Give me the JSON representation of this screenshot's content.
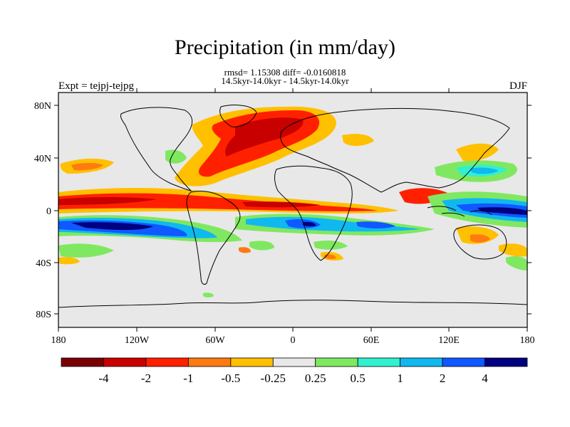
{
  "title": "Precipitation (in mm/day)",
  "stats_line1": "rmsd= 1.15308 diff= -0.0160818",
  "stats_line2": "14.5kyr-14.0kyr - 14.5kyr-14.0kyr",
  "experiment": "Expt = tejpj-tejpg",
  "season": "DJF",
  "lat_labels": [
    "80N",
    "40N",
    "0",
    "40S",
    "80S"
  ],
  "lon_labels": [
    "180",
    "120W",
    "60W",
    "0",
    "60E",
    "120E",
    "180"
  ],
  "colorbar": {
    "colors": [
      "#7a0000",
      "#c80000",
      "#ff2000",
      "#ff7a10",
      "#ffc000",
      "#e8e8e8",
      "#80e860",
      "#30f0d0",
      "#10b8f0",
      "#1058ff",
      "#000080"
    ],
    "labels": [
      "-4",
      "-2",
      "-1",
      "-0.5",
      "-0.25",
      "0.25",
      "0.5",
      "1",
      "2",
      "4"
    ]
  },
  "colors": {
    "ocean_bg": "#e8e8e8",
    "coast": "#000000"
  }
}
